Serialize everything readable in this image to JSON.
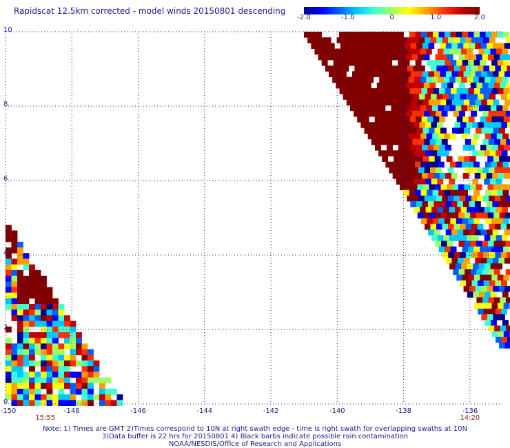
{
  "title": "Rapidscat 12.5km corrected - model winds 20150801 descending",
  "colorbar": {
    "ticks": [
      {
        "label": "-2.0",
        "value": -2.0
      },
      {
        "label": "-1.0",
        "value": -1.0
      },
      {
        "label": "0",
        "value": 0
      },
      {
        "label": "1.0",
        "value": 1.0
      },
      {
        "label": "2.0",
        "value": 2.0
      }
    ],
    "colors": [
      "#00008c",
      "#0000ff",
      "#0060ff",
      "#00c8ff",
      "#40ffd0",
      "#a0ff60",
      "#ffff00",
      "#ffa000",
      "#ff3000",
      "#c00000",
      "#800000"
    ]
  },
  "map": {
    "x_ticks": [
      {
        "label": "-150",
        "value": -150
      },
      {
        "label": "-148",
        "value": -148
      },
      {
        "label": "-146",
        "value": -146
      },
      {
        "label": "-144",
        "value": -144
      },
      {
        "label": "-142",
        "value": -142
      },
      {
        "label": "-140",
        "value": -140
      },
      {
        "label": "-138",
        "value": -138
      },
      {
        "label": "-136",
        "value": -136
      }
    ],
    "y_ticks": [
      {
        "label": "0",
        "value": 0
      },
      {
        "label": "2",
        "value": 2
      },
      {
        "label": "4",
        "value": 4
      },
      {
        "label": "6",
        "value": 6
      },
      {
        "label": "8",
        "value": 8
      },
      {
        "label": "10",
        "value": 10
      }
    ],
    "lon_range": [
      -150,
      -135
    ],
    "lat_range": [
      0,
      10
    ],
    "gridlines": true,
    "swath_times": [
      {
        "label": "15:55",
        "lon": -148.8
      },
      {
        "label": "14:20",
        "lon": -136
      }
    ]
  },
  "notes": [
    "Note: 1) Times are GMT 2)Times correspond to 10N at right swath edge - time is right swath for overlapping swaths at 10N",
    "3)Data buffer is 22 hrs for 20150801 4) Black barbs indicate possible rain contamination",
    "NOAA/NESDIS/Office of Research and Applications"
  ]
}
